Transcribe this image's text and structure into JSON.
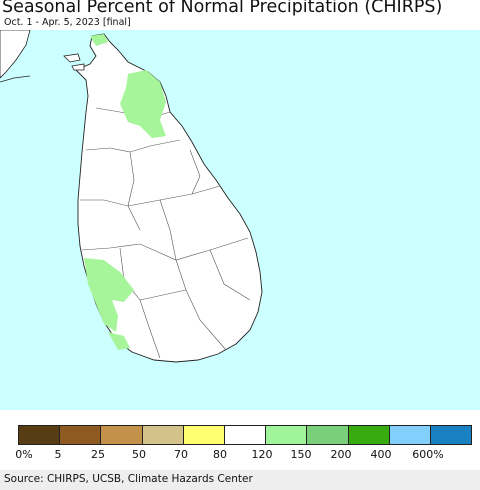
{
  "title": "Seasonal Percent of Normal Precipitation (CHIRPS)",
  "subtitle": "Oct. 1 - Apr. 5, 2023 [final]",
  "source": "Source: CHIRPS, UCSB, Climate Hazards Center",
  "colors": {
    "ocean": "#ccffff",
    "land": "#ffffff",
    "boundary": "#222222",
    "above_normal": "#a6f59b"
  },
  "legend": {
    "colors": [
      "#573c14",
      "#8f5a22",
      "#c39149",
      "#d3c38b",
      "#ffff70",
      "#ffffff",
      "#a0f59a",
      "#7acf7a",
      "#38ab0f",
      "#83cffb",
      "#1980c1"
    ],
    "ticks": [
      "0%",
      "5",
      "25",
      "50",
      "70",
      "80",
      "120",
      "150",
      "200",
      "400",
      "600%"
    ]
  }
}
